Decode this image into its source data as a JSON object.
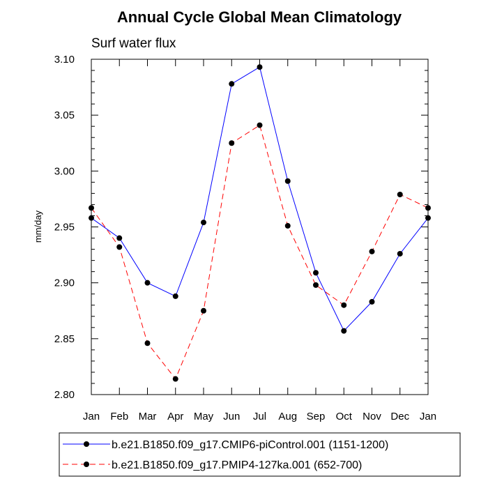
{
  "chart_data": {
    "type": "line",
    "title": "Annual Cycle Global Mean Climatology",
    "subtitle": "Surf water flux",
    "xlabel": "",
    "ylabel": "mm/day",
    "categories": [
      "Jan",
      "Feb",
      "Mar",
      "Apr",
      "May",
      "Jun",
      "Jul",
      "Aug",
      "Sep",
      "Oct",
      "Nov",
      "Dec",
      "Jan"
    ],
    "ylim": [
      2.8,
      3.1
    ],
    "yticks": [
      "2.80",
      "2.85",
      "2.90",
      "2.95",
      "3.00",
      "3.05",
      "3.10"
    ],
    "grid": false,
    "legend_position": "bottom",
    "series": [
      {
        "name": "b.e21.B1850.f09_g17.CMIP6-piControl.001 (1151-1200)",
        "color": "#0000ff",
        "line_style": "solid",
        "values": [
          2.958,
          2.94,
          2.9,
          2.888,
          2.954,
          3.078,
          3.093,
          2.991,
          2.909,
          2.857,
          2.883,
          2.926,
          2.958
        ]
      },
      {
        "name": "b.e21.B1850.f09_g17.PMIP4-127ka.001 (652-700)",
        "color": "#ff0000",
        "line_style": "dashed",
        "values": [
          2.967,
          2.932,
          2.846,
          2.814,
          2.875,
          3.025,
          3.041,
          2.951,
          2.898,
          2.88,
          2.928,
          2.979,
          2.967
        ]
      }
    ]
  }
}
